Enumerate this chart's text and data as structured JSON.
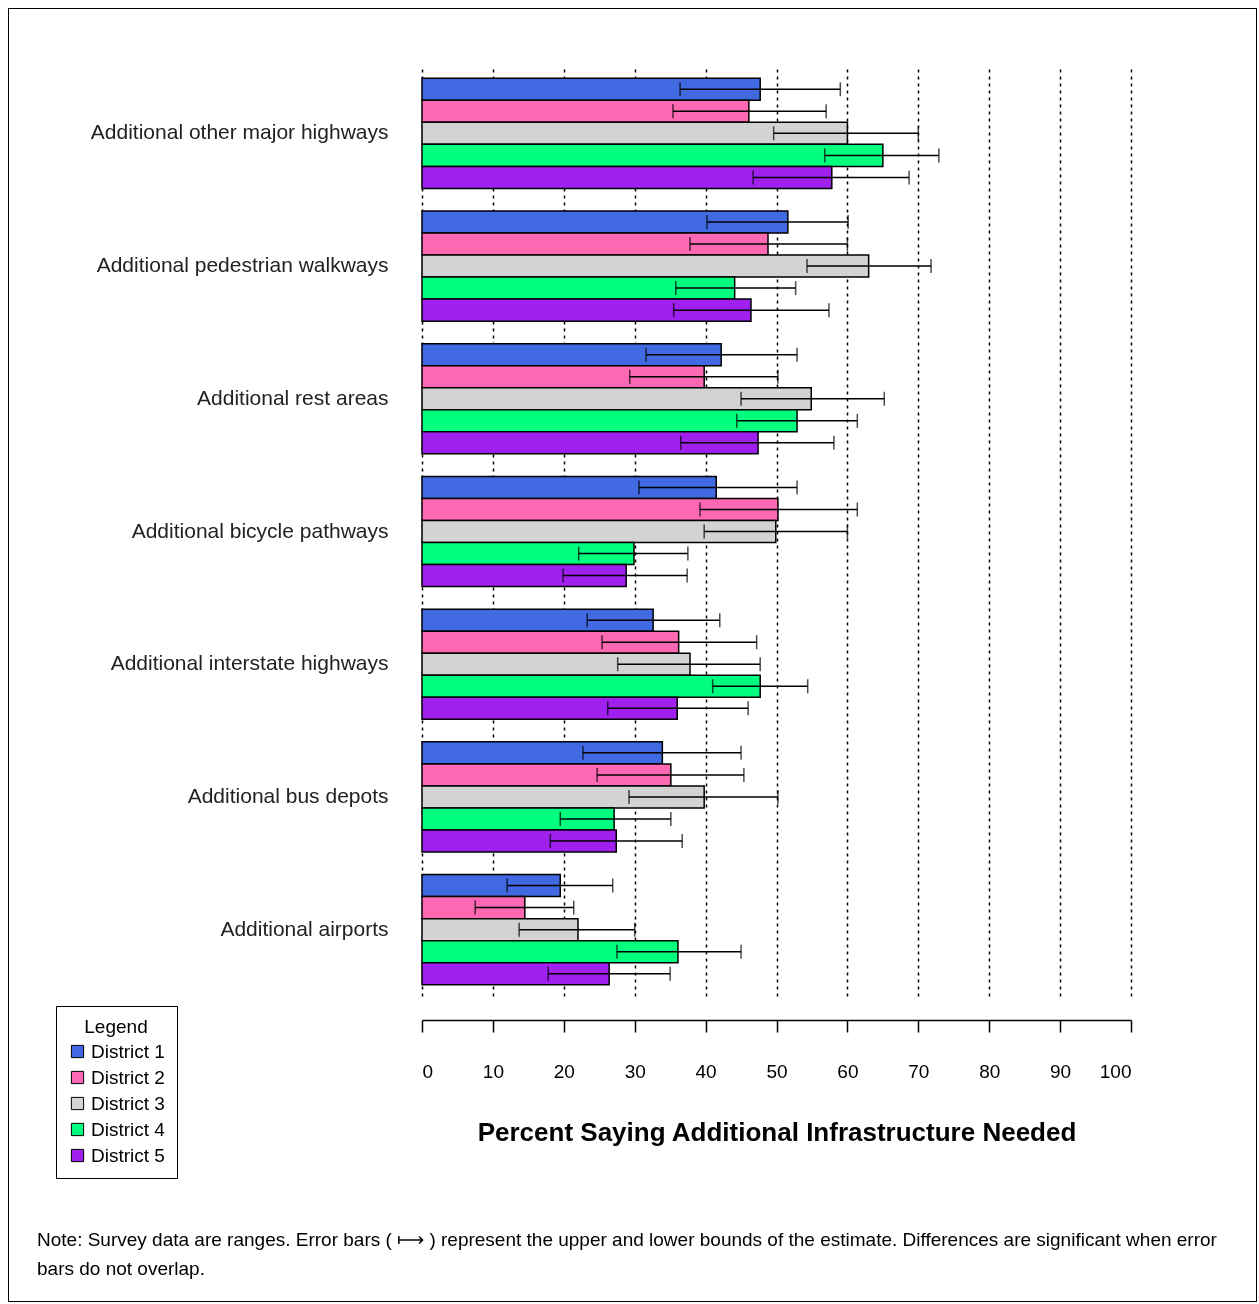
{
  "chart_data": {
    "type": "bar",
    "orientation": "horizontal",
    "xlabel": "Percent Saying Additional Infrastructure Needed",
    "legend_title": "Legend",
    "categories": [
      "Additional other major highways",
      "Additional pedestrian walkways",
      "Additional rest areas",
      "Additional bicycle pathways",
      "Additional interstate highways",
      "Additional bus depots",
      "Additional airports"
    ],
    "series": [
      {
        "name": "District 1",
        "color": "#4169e1",
        "values": [
          47.7,
          51.6,
          42.2,
          41.5,
          32.6,
          33.9,
          19.5
        ],
        "errors": [
          [
            36.4,
            59
          ],
          [
            40.2,
            60.1
          ],
          [
            31.6,
            52.9
          ],
          [
            30.6,
            52.9
          ],
          [
            23.3,
            42
          ],
          [
            22.7,
            45
          ],
          [
            12,
            26.9
          ]
        ]
      },
      {
        "name": "District 2",
        "color": "#ff69b4",
        "values": [
          46.1,
          48.8,
          39.8,
          50.2,
          36.2,
          35.1,
          14.5
        ],
        "errors": [
          [
            35.4,
            57
          ],
          [
            37.8,
            60
          ],
          [
            29.3,
            50.2
          ],
          [
            39.2,
            61.4
          ],
          [
            25.4,
            47.2
          ],
          [
            24.7,
            45.4
          ],
          [
            7.5,
            21.4
          ]
        ]
      },
      {
        "name": "District 3",
        "color": "#d3d3d3",
        "values": [
          60,
          63,
          54.9,
          49.9,
          37.8,
          39.8,
          22
        ],
        "errors": [
          [
            49.6,
            70
          ],
          [
            54.3,
            71.8
          ],
          [
            45,
            65.2
          ],
          [
            39.8,
            60
          ],
          [
            27.6,
            47.7
          ],
          [
            29.2,
            50.2
          ],
          [
            13.7,
            30
          ]
        ]
      },
      {
        "name": "District 4",
        "color": "#00ff7f",
        "values": [
          65,
          44.1,
          52.9,
          29.9,
          47.7,
          27.1,
          36.1
        ],
        "errors": [
          [
            56.8,
            72.9
          ],
          [
            35.8,
            52.7
          ],
          [
            44.4,
            61.4
          ],
          [
            22.1,
            37.5
          ],
          [
            41,
            54.4
          ],
          [
            19.5,
            35.1
          ],
          [
            27.5,
            45
          ]
        ]
      },
      {
        "name": "District 5",
        "color": "#a020f0",
        "values": [
          57.8,
          46.4,
          47.4,
          28.8,
          36,
          27.4,
          26.4
        ],
        "errors": [
          [
            46.7,
            68.7
          ],
          [
            35.5,
            57.4
          ],
          [
            36.5,
            58.1
          ],
          [
            19.9,
            37.4
          ],
          [
            26.2,
            46
          ],
          [
            18.1,
            36.7
          ],
          [
            17.8,
            35
          ]
        ]
      }
    ],
    "xlim": [
      0,
      100
    ],
    "xticks": [
      0,
      10,
      20,
      30,
      40,
      50,
      60,
      70,
      80,
      90,
      100
    ],
    "grid": "x",
    "legend": "bottom left",
    "annotations": [
      "Note:  Survey data are ranges.  Error bars ( ⟼ ) represent the upper and lower bounds of the estimate.  Differences are significant when error bars do not overlap."
    ]
  }
}
